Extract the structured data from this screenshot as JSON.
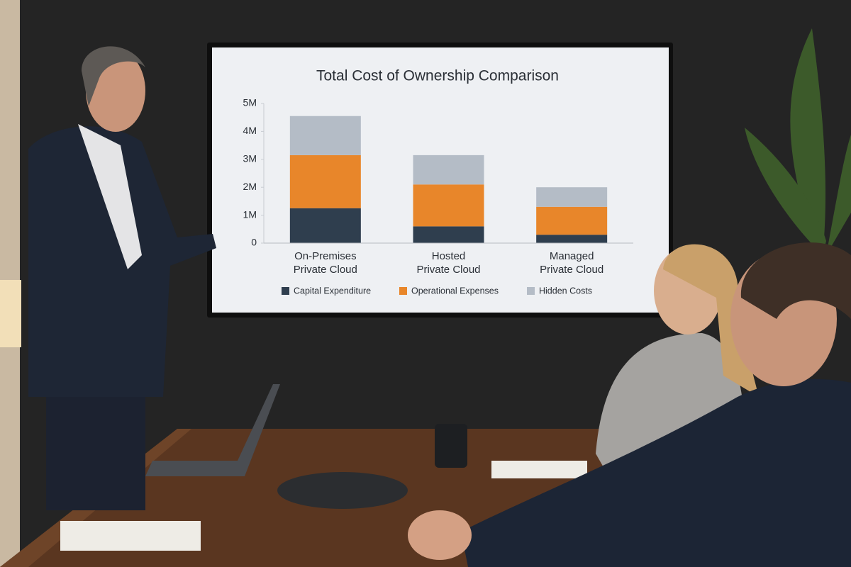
{
  "chart_data": {
    "type": "stacked-bar",
    "title": "Total Cost of Ownership Comparison",
    "categories": [
      "On-Premises\nPrivate Cloud",
      "Hosted\nPrivate Cloud",
      "Managed\nPrivate Cloud"
    ],
    "series": [
      {
        "name": "Capital Expenditure",
        "color": "#2f3e4e",
        "values": [
          1250000,
          600000,
          300000
        ]
      },
      {
        "name": "Operational Expenses",
        "color": "#e8862a",
        "values": [
          1900000,
          1500000,
          1000000
        ]
      },
      {
        "name": "Hidden Costs",
        "color": "#b4bcc6",
        "values": [
          1400000,
          1050000,
          700000
        ]
      }
    ],
    "ylim": [
      0,
      5000000
    ],
    "yticks": [
      0,
      {
        "value": 1000000,
        "label": "1M"
      },
      {
        "value": 2000000,
        "label": "2M"
      },
      {
        "value": 3000000,
        "label": "3M"
      },
      {
        "value": 4000000,
        "label": "4M"
      },
      {
        "value": 5000000,
        "label": "5M"
      }
    ],
    "grid": false,
    "legend": "bottom"
  }
}
